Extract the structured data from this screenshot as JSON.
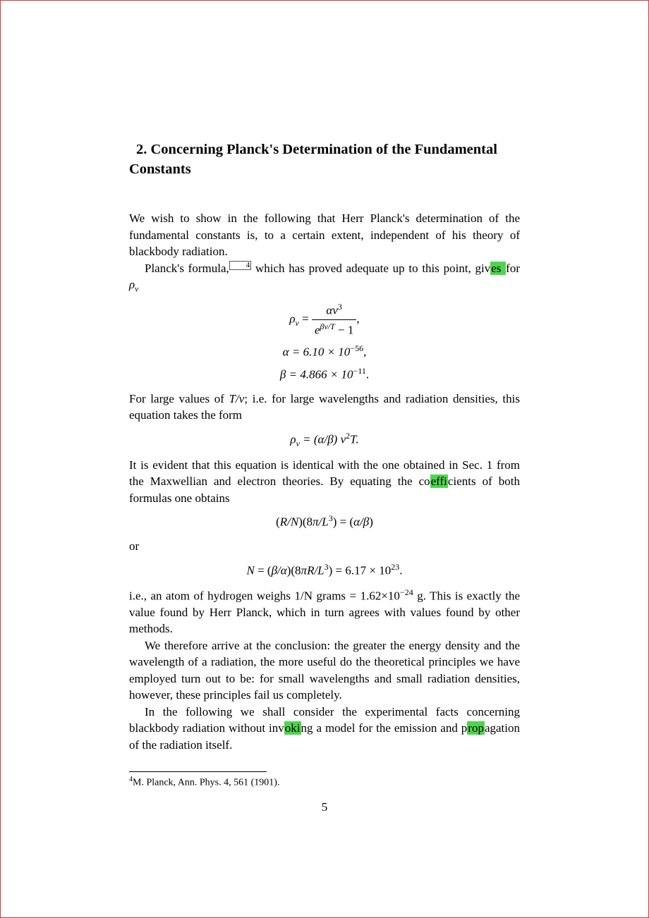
{
  "section": {
    "number": "2.",
    "title": "Concerning Planck's Determination of the Fundamental Constants"
  },
  "paragraphs": {
    "p1": "We wish to show in the following that Herr Planck's determination of the fundamental constants is, to a certain extent, independent of his theory of blackbody radiation.",
    "p2_a": "Planck's formula,",
    "p2_b": " which has proved adequate up to this point, giv",
    "p2_hl": "es ",
    "p2_c": "for ",
    "rho_nu": "ρ",
    "rho_nu_sub": "ν",
    "eq1_lhs": "ρ",
    "eq1_lhs_sub": "ν",
    "eq1_eq": " = ",
    "eq1_frac_num_a": "αν",
    "eq1_frac_num_sup": "3",
    "eq1_frac_den_a": "e",
    "eq1_frac_den_sup": "βν/T",
    "eq1_frac_den_b": " − 1",
    "eq1_comma": ",",
    "eq2": "α = 6.10 × 10",
    "eq2_sup": "−56",
    "eq2_comma": ",",
    "eq3": "β = 4.866 × 10",
    "eq3_sup": "−11",
    "eq3_period": ".",
    "p3": "For large values of T/ν; i.e. for large wavelengths and radiation densities, this equation takes the form",
    "eq4_a": "ρ",
    "eq4_sub": "ν",
    "eq4_b": " = (α/β) ν",
    "eq4_sup": "2",
    "eq4_c": "T.",
    "p4_a": "It is evident that this equation is identical with the one obtained in Sec. 1 from the Maxwellian and electron theories. By equating the co",
    "p4_hl": "effi",
    "p4_b": "cients of both formulas one obtains",
    "eq5": "(R/N)(8π/L",
    "eq5_sup": "3",
    "eq5_b": ") = (α/β)",
    "p5": "or",
    "eq6_a": "N = (β/α)(8πR/L",
    "eq6_sup": "3",
    "eq6_b": ") = 6.17 × 10",
    "eq6_sup2": "23",
    "eq6_c": ".",
    "p6_a": "i.e., an atom of hydrogen weighs 1/N grams = 1.62×10",
    "p6_sup": "−24",
    "p6_b": " g. This is exactly the value found by Herr Planck, which in turn agrees with values found by other methods.",
    "p7": "We therefore arrive at the conclusion: the greater the energy density and the wavelength of a radiation, the more useful do the theoretical principles we have employed turn out to be: for small wavelengths and small radiation densities, however, these principles fail us completely.",
    "p8_a": "In the following we shall consider the experimental facts concerning blackbody radiation without inv",
    "p8_hl1": "oki",
    "p8_b": "ng a model for the emission and p",
    "p8_hl2": "rop",
    "p8_c": "agation of the radiation itself."
  },
  "footnote": {
    "number": "4",
    "text": "M. Planck, Ann. Phys. 4, 561 (1901)."
  },
  "footnote_marker": "4",
  "page_number": "5"
}
